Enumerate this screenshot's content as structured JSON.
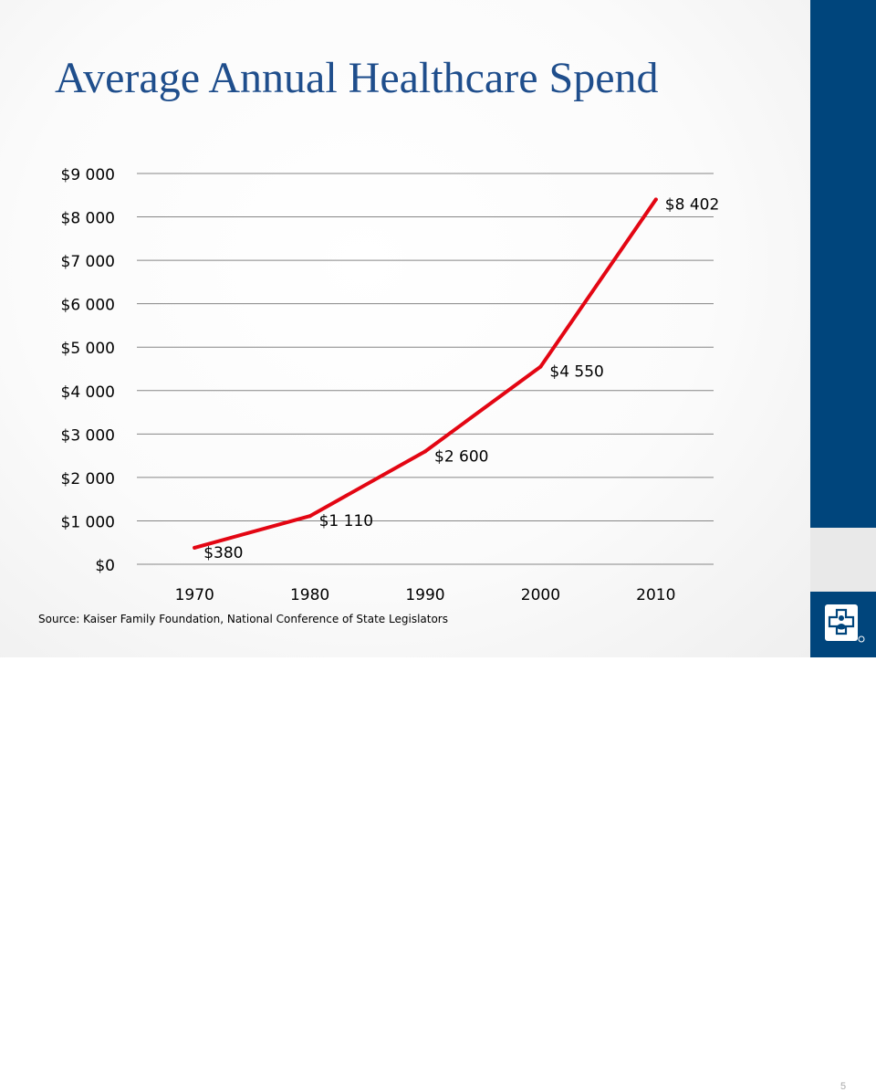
{
  "slide": {
    "title": "Average Annual Healthcare Spend",
    "source": "Source:  Kaiser Family Foundation, National Conference of State Legislators",
    "page_number": "5"
  },
  "colors": {
    "title": "#1f4e8c",
    "band": "#00457c",
    "line": "#e30613",
    "grid": "#868686"
  },
  "logo": {
    "icon": "blue-cross-shield-icon"
  },
  "chart_data": {
    "type": "line",
    "title": "",
    "xlabel": "",
    "ylabel": "",
    "categories": [
      "1970",
      "1980",
      "1990",
      "2000",
      "2010"
    ],
    "series": [
      {
        "values": [
          380,
          1110,
          2600,
          4550,
          8402
        ],
        "labels": [
          "$380",
          "$1 110",
          "$2 600",
          "$4 550",
          "$8 402"
        ]
      }
    ],
    "ylim": [
      0,
      9000
    ],
    "yticks": [
      0,
      1000,
      2000,
      3000,
      4000,
      5000,
      6000,
      7000,
      8000,
      9000
    ],
    "ytick_labels": [
      "$0",
      "$1 000",
      "$2 000",
      "$3 000",
      "$4 000",
      "$5 000",
      "$6 000",
      "$7 000",
      "$8 000",
      "$9 000"
    ],
    "grid": true,
    "legend": "none"
  }
}
